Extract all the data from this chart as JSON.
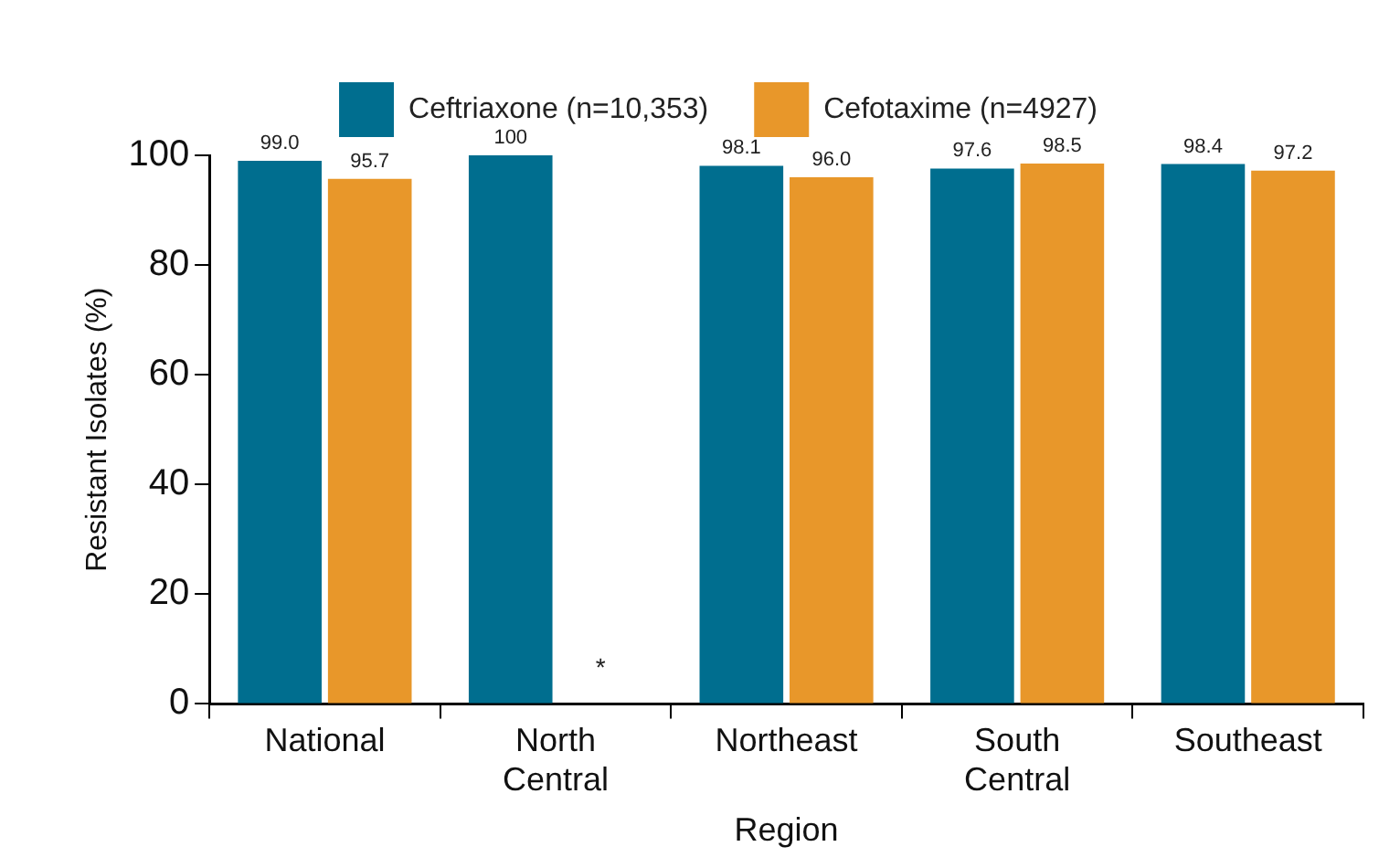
{
  "chart_data": {
    "type": "bar",
    "xlabel": "Region",
    "ylabel": "Resistant Isolates (%)",
    "categories": [
      "National",
      "North Central",
      "Northeast",
      "South Central",
      "Southeast"
    ],
    "series": [
      {
        "name": "Ceftriaxone (n=10,353)",
        "color": "#006e8f",
        "values": [
          99.0,
          100,
          98.1,
          97.6,
          98.4
        ],
        "value_labels": [
          "99.0",
          "100",
          "98.1",
          "97.6",
          "98.4"
        ]
      },
      {
        "name": "Cefotaxime (n=4927)",
        "color": "#e8972a",
        "values": [
          95.7,
          null,
          96.0,
          98.5,
          97.2
        ],
        "value_labels": [
          "95.7",
          null,
          "96.0",
          "98.5",
          "97.2"
        ]
      }
    ],
    "ylim": [
      0,
      100
    ],
    "yticks": [
      0,
      20,
      40,
      60,
      80,
      100
    ],
    "grid": false,
    "legend": "top",
    "annotations": [
      {
        "text": "*",
        "x": "North Central"
      }
    ]
  }
}
